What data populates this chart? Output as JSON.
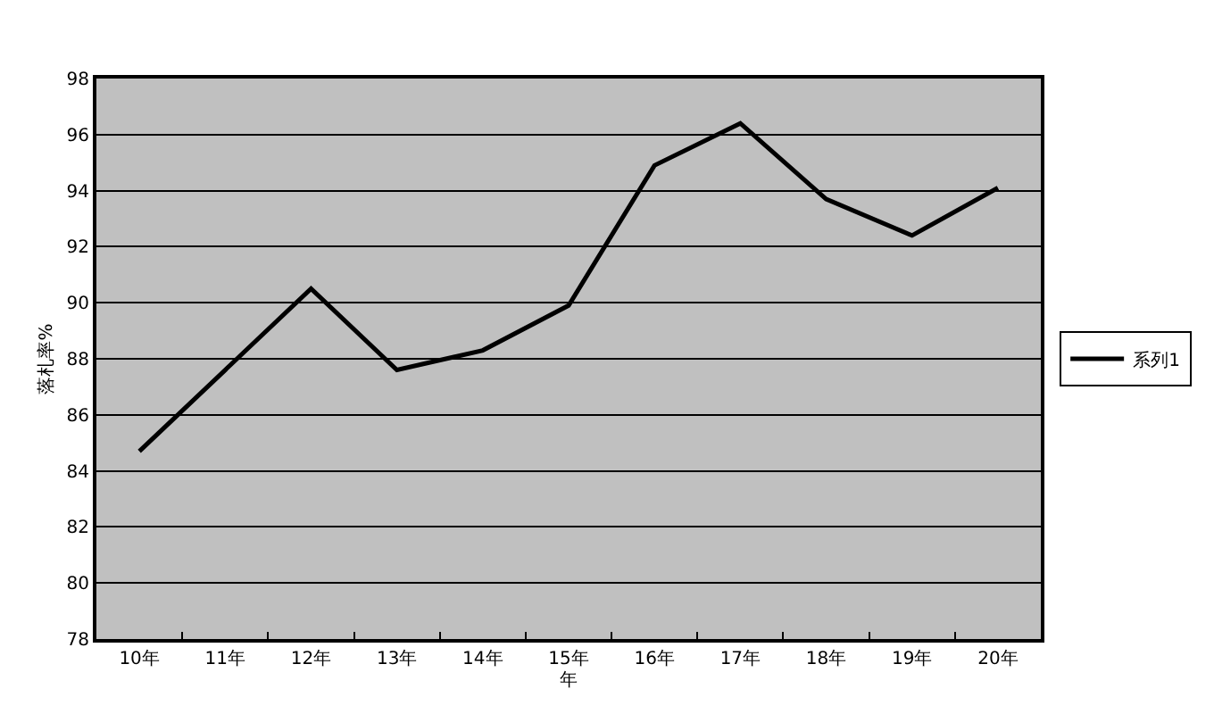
{
  "chart_data": {
    "type": "line",
    "xlabel": "年",
    "ylabel": "落札率%",
    "categories": [
      "10年",
      "11年",
      "12年",
      "13年",
      "14年",
      "15年",
      "16年",
      "17年",
      "18年",
      "19年",
      "20年"
    ],
    "series": [
      {
        "name": "系列1",
        "color": "#000000",
        "values": [
          84.7,
          87.6,
          90.5,
          87.6,
          88.3,
          89.9,
          94.9,
          96.4,
          93.7,
          92.4,
          94.1
        ]
      }
    ],
    "ylim": [
      78,
      98
    ],
    "yticks": [
      78,
      80,
      82,
      84,
      86,
      88,
      90,
      92,
      94,
      96,
      98
    ],
    "grid": "y",
    "legend": "right",
    "marker": "none",
    "line_style": "solid"
  }
}
